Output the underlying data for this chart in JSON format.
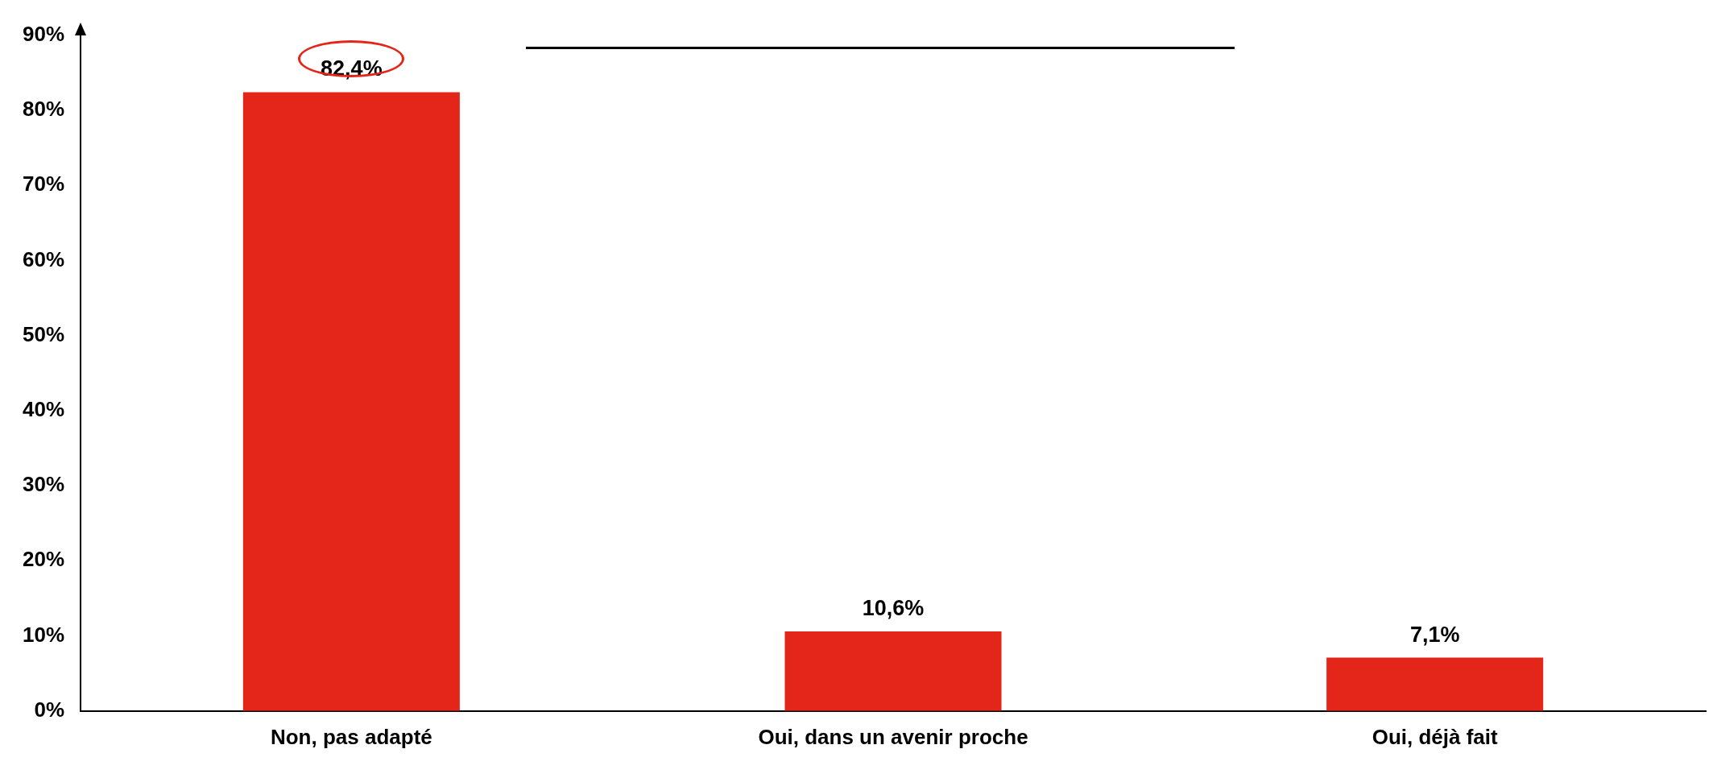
{
  "chart_data": {
    "type": "bar",
    "categories": [
      "Non, pas adapté",
      "Oui, dans un avenir proche",
      "Oui, déjà fait"
    ],
    "values": [
      82.4,
      10.6,
      7.1
    ],
    "value_labels": [
      "82,4%",
      "10,6%",
      "7,1%"
    ],
    "color": "#e32619",
    "ylim": [
      0,
      90
    ],
    "yticks": [
      {
        "value": 0,
        "label": "0%"
      },
      {
        "value": 10,
        "label": "10%"
      },
      {
        "value": 20,
        "label": "20%"
      },
      {
        "value": 30,
        "label": "30%"
      },
      {
        "value": 40,
        "label": "40%"
      },
      {
        "value": 50,
        "label": "50%"
      },
      {
        "value": 60,
        "label": "60%"
      },
      {
        "value": 70,
        "label": "70%"
      },
      {
        "value": 80,
        "label": "80%"
      },
      {
        "value": 90,
        "label": "90%"
      }
    ],
    "grid": false,
    "legend": false
  }
}
